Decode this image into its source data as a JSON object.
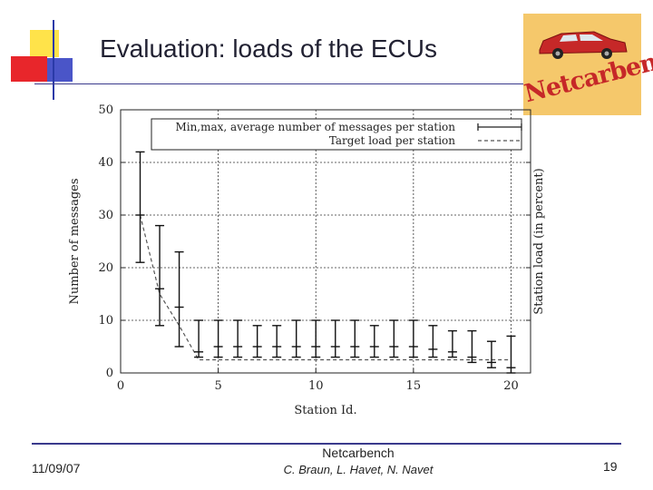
{
  "slide": {
    "title": "Evaluation: loads of the ECUs",
    "logo_text": "Netcarbench",
    "footer_center_top": "Netcarbench",
    "footer_authors": "C. Braun, L. Havet, N. Navet",
    "date": "11/09/07",
    "page_number": "19",
    "colors": {
      "accent_red": "#e8262b",
      "accent_yellow": "#ffe34a",
      "accent_blue": "#2a3aa8",
      "logo_bg": "#f5c86b"
    }
  },
  "chart_data": {
    "type": "line",
    "title": "",
    "xlabel": "Station Id.",
    "ylabel": "Number of messages",
    "y2label": "Station load (in percent)",
    "xlim": [
      0,
      21
    ],
    "ylim": [
      0,
      50
    ],
    "xticks": [
      0,
      5,
      10,
      15,
      20
    ],
    "yticks": [
      0,
      10,
      20,
      30,
      40,
      50
    ],
    "grid": true,
    "legend_position": "top",
    "legend": [
      "Min,max, average number of messages per station",
      "Target load per station"
    ],
    "x": [
      1,
      2,
      3,
      4,
      5,
      6,
      7,
      8,
      9,
      10,
      11,
      12,
      13,
      14,
      15,
      16,
      17,
      18,
      19,
      20
    ],
    "series": [
      {
        "name": "Min,max, average number of messages per station",
        "min": [
          21,
          9,
          5,
          3,
          3,
          3,
          3,
          3,
          3,
          3,
          3,
          3,
          3,
          3,
          3,
          3,
          3,
          2,
          1,
          0
        ],
        "max": [
          42,
          28,
          23,
          10,
          10,
          10,
          9,
          9,
          10,
          10,
          10,
          10,
          9,
          10,
          10,
          9,
          8,
          8,
          6,
          7
        ],
        "avg": [
          30,
          16,
          12.5,
          4,
          5,
          5,
          5,
          5,
          5,
          5,
          5,
          5,
          5,
          5,
          5,
          4.5,
          4,
          3,
          2,
          1
        ]
      },
      {
        "name": "Target load per station",
        "values": [
          30,
          15,
          9,
          2.5,
          2.5,
          2.5,
          2.5,
          2.5,
          2.5,
          2.5,
          2.5,
          2.5,
          2.5,
          2.5,
          2.5,
          2.5,
          2.5,
          2.5,
          2.5,
          2.5
        ]
      }
    ]
  }
}
